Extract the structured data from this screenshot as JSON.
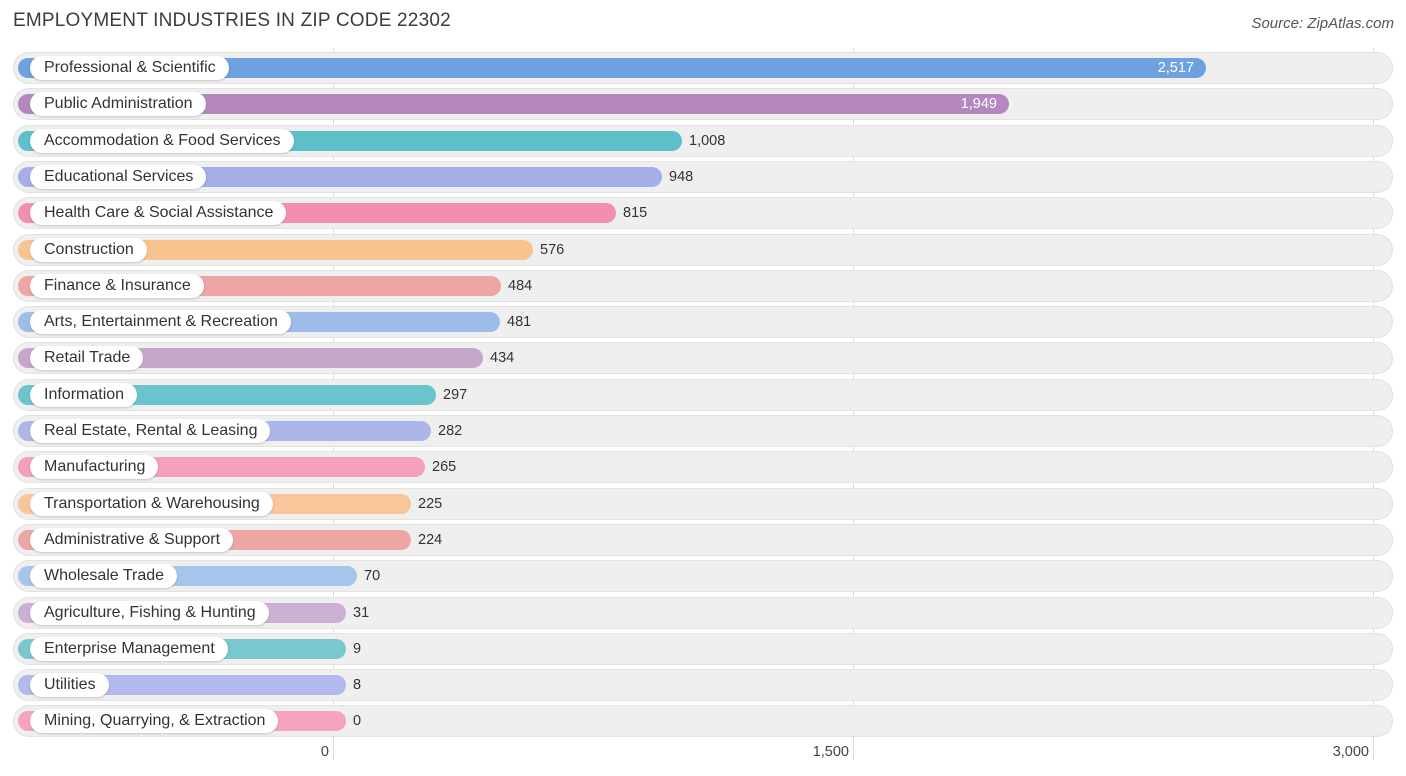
{
  "chart_data": {
    "type": "bar",
    "orientation": "horizontal",
    "title": "EMPLOYMENT INDUSTRIES IN ZIP CODE 22302",
    "source": "Source: ZipAtlas.com",
    "xlim": [
      0,
      3000
    ],
    "xticks": [
      0,
      1500,
      3000
    ],
    "xtick_labels": [
      "0",
      "1,500",
      "3,000"
    ],
    "categories": [
      "Professional & Scientific",
      "Public Administration",
      "Accommodation & Food Services",
      "Educational Services",
      "Health Care & Social Assistance",
      "Construction",
      "Finance & Insurance",
      "Arts, Entertainment & Recreation",
      "Retail Trade",
      "Information",
      "Real Estate, Rental & Leasing",
      "Manufacturing",
      "Transportation & Warehousing",
      "Administrative & Support",
      "Wholesale Trade",
      "Agriculture, Fishing & Hunting",
      "Enterprise Management",
      "Utilities",
      "Mining, Quarrying, & Extraction"
    ],
    "values": [
      2517,
      1949,
      1008,
      948,
      815,
      576,
      484,
      481,
      434,
      297,
      282,
      265,
      225,
      224,
      70,
      31,
      9,
      8,
      0
    ],
    "value_labels": [
      "2,517",
      "1,949",
      "1,008",
      "948",
      "815",
      "576",
      "484",
      "481",
      "434",
      "297",
      "282",
      "265",
      "225",
      "224",
      "70",
      "31",
      "9",
      "8",
      "0"
    ],
    "colors": [
      "#6ea1e0",
      "#b488be",
      "#5ebfc9",
      "#a5aee6",
      "#f38fae",
      "#f8c38f",
      "#eda6a3",
      "#9dbde8",
      "#c6a7cc",
      "#6bc4cc",
      "#adb6e9",
      "#f49fbb",
      "#f8c69a",
      "#eca7a4",
      "#a6c4ec",
      "#ccb0d3",
      "#77c8cf",
      "#b2b9ec",
      "#f5a3c0"
    ]
  }
}
